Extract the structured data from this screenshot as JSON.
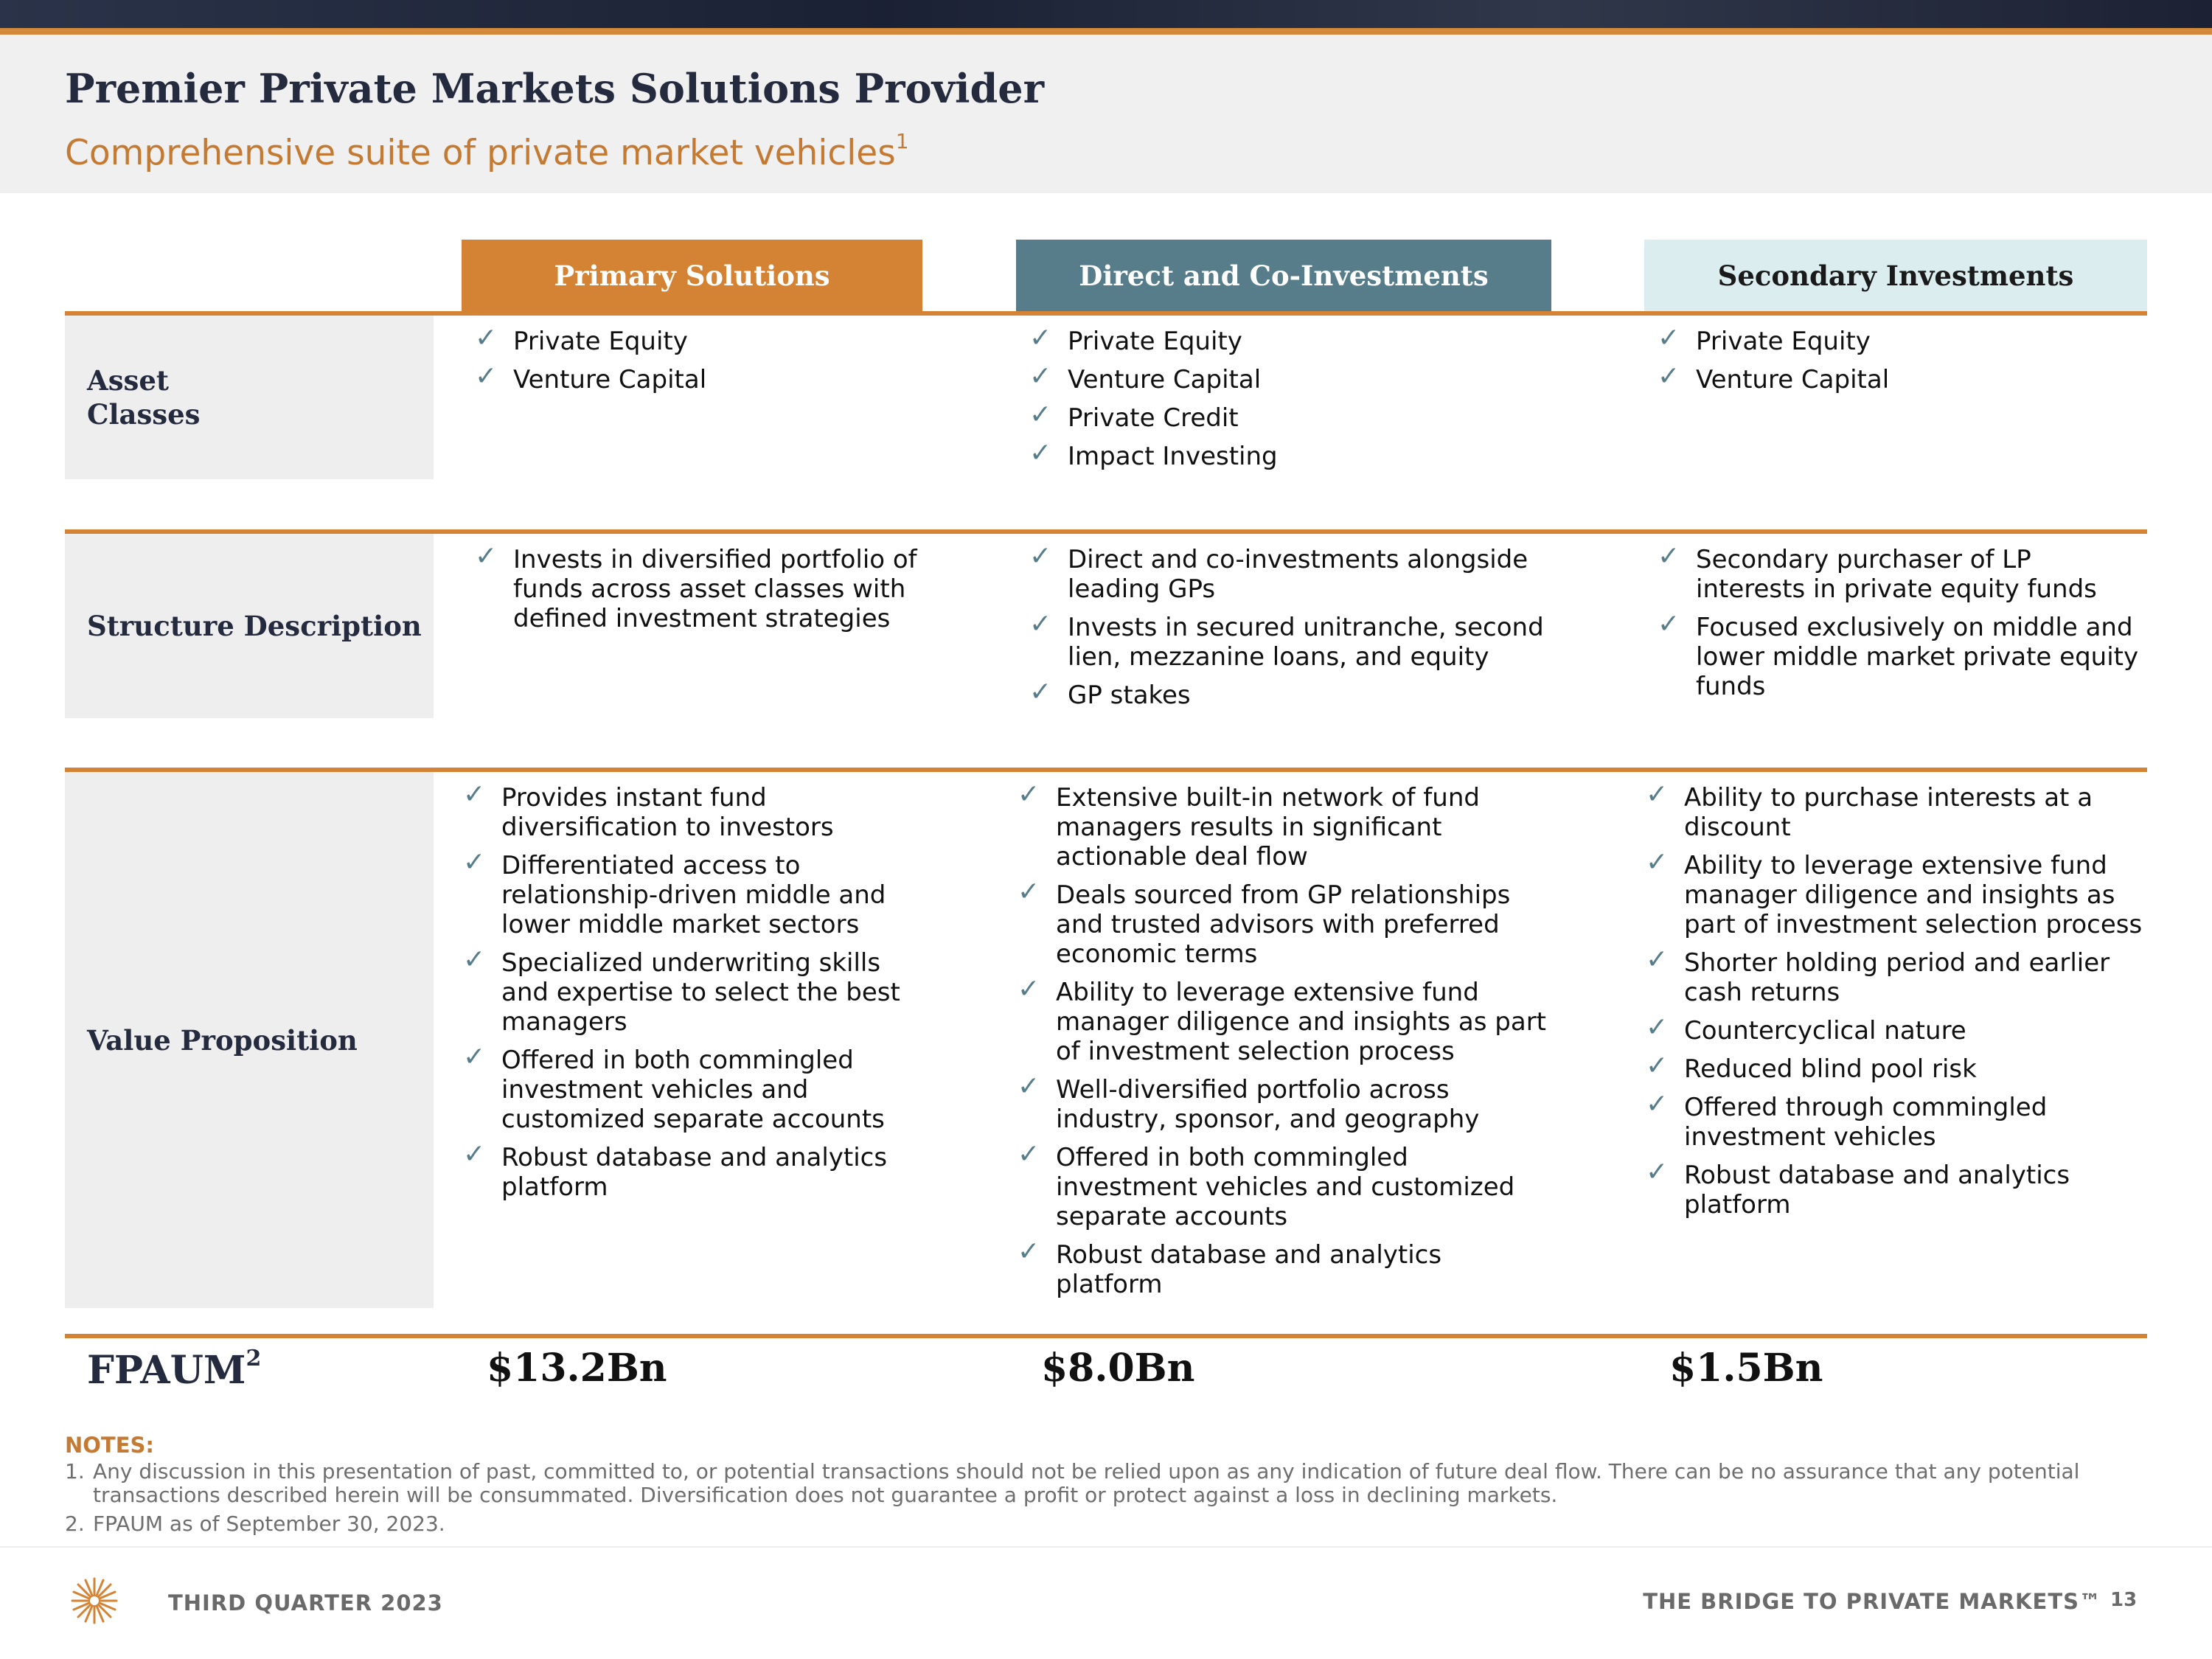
{
  "header": {
    "title": "Premier Private Markets Solutions Provider",
    "subtitle": "Comprehensive suite of private market vehicles",
    "subtitle_sup": "1"
  },
  "columns": {
    "primary": "Primary Solutions",
    "direct": "Direct and Co-Investments",
    "secondary": "Secondary Investments"
  },
  "rows": {
    "asset_classes": {
      "label": "Asset Classes",
      "primary": [
        "Private Equity",
        "Venture Capital"
      ],
      "direct": [
        "Private Equity",
        "Venture Capital",
        "Private Credit",
        "Impact Investing"
      ],
      "secondary": [
        "Private Equity",
        "Venture Capital"
      ]
    },
    "structure": {
      "label": "Structure Description",
      "primary": [
        "Invests in diversified portfolio of funds across asset classes with defined investment strategies"
      ],
      "direct": [
        "Direct and co-investments alongside leading GPs",
        "Invests in secured unitranche, second lien, mezzanine loans, and equity",
        "GP stakes"
      ],
      "secondary": [
        "Secondary purchaser of LP interests in private equity funds",
        "Focused exclusively on middle and lower middle market private equity funds"
      ]
    },
    "value": {
      "label": "Value Proposition",
      "primary": [
        "Provides instant fund diversification to investors",
        "Differentiated access to relationship-driven middle and lower middle market sectors",
        "Specialized underwriting skills and expertise to select the best managers",
        "Offered in both commingled investment vehicles and customized separate accounts",
        "Robust database and analytics platform"
      ],
      "direct": [
        "Extensive built-in network of fund managers results in significant actionable deal flow",
        "Deals sourced from GP relationships and trusted advisors with preferred economic terms",
        "Ability to leverage extensive fund manager diligence and insights as part of investment selection process",
        "Well-diversified portfolio across industry, sponsor, and geography",
        "Offered in both commingled investment vehicles and customized separate accounts",
        "Robust database and analytics platform"
      ],
      "secondary": [
        "Ability to purchase interests at a discount",
        "Ability to leverage extensive fund manager diligence and insights as part of investment selection process",
        "Shorter holding period and earlier cash returns",
        "Countercyclical nature",
        "Reduced blind pool risk",
        "Offered through commingled investment vehicles",
        "Robust database and analytics platform"
      ]
    }
  },
  "fpaum": {
    "label": "FPAUM",
    "label_sup": "2",
    "primary": "$13.2Bn",
    "direct": "$8.0Bn",
    "secondary": "$1.5Bn"
  },
  "notes": {
    "title": "NOTES:",
    "items": [
      {
        "num": "1.",
        "text": "Any discussion in this presentation of past, committed to, or potential transactions should not be relied upon as any indication of future deal flow. There can be no assurance that any potential transactions described herein will be consummated. Diversification does not guarantee a profit or protect against a loss in declining markets."
      },
      {
        "num": "2.",
        "text": "FPAUM as of September 30, 2023."
      }
    ]
  },
  "footer": {
    "left": "THIRD QUARTER 2023",
    "right": "THE BRIDGE TO PRIVATE MARKETS™",
    "page": "13"
  },
  "colors": {
    "accent_orange": "#d38333",
    "teal": "#577d8a",
    "light_blue": "#dcedf0",
    "navy": "#252b3f"
  },
  "icons": {
    "bullet": "checkmark-icon",
    "logo": "starburst-logo-icon"
  }
}
